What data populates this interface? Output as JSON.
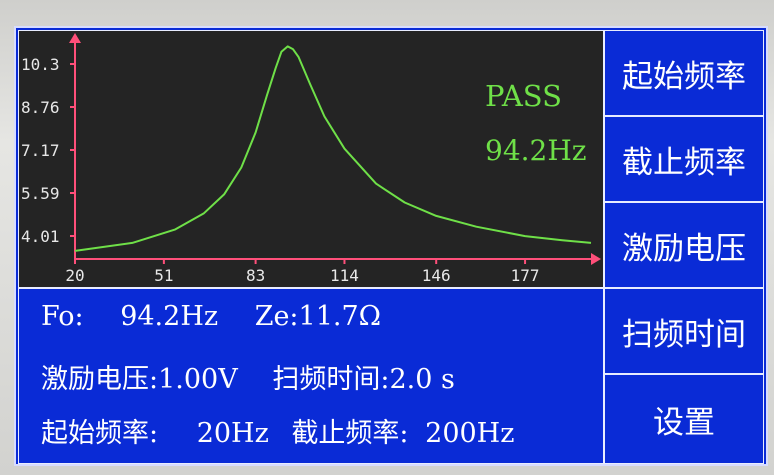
{
  "plot": {
    "y_ticks": [
      "10.3",
      "8.76",
      "7.17",
      "5.59",
      "4.01"
    ],
    "x_ticks": [
      "20",
      "51",
      "83",
      "114",
      "146",
      "177"
    ],
    "result": "PASS",
    "peak_freq": "94.2Hz",
    "colors": {
      "curve": "#6fe048",
      "axis": "#ff4f7a",
      "background": "#242424"
    }
  },
  "chart_data": {
    "type": "line",
    "xlim": [
      20,
      200
    ],
    "ylim": [
      2.5,
      10.6
    ],
    "series": [
      {
        "x": [
          20,
          40,
          55,
          65,
          72,
          78,
          83,
          87,
          90,
          92,
          94.2,
          96,
          98,
          102,
          107,
          114,
          125,
          135,
          146,
          160,
          177,
          190,
          200
        ],
        "y": [
          2.8,
          3.1,
          3.6,
          4.2,
          4.9,
          5.9,
          7.2,
          8.6,
          9.6,
          10.2,
          10.4,
          10.3,
          10.0,
          9.0,
          7.8,
          6.6,
          5.3,
          4.6,
          4.1,
          3.7,
          3.35,
          3.2,
          3.1
        ]
      }
    ]
  },
  "info": {
    "fo_label": "Fo:",
    "fo_value": "94.2Hz",
    "ze_label": "Ze:",
    "ze_value": "11.7Ω",
    "drive_voltage_label": "激励电压:",
    "drive_voltage_value": "1.00V",
    "sweep_time_label": "扫频时间:",
    "sweep_time_value": "2.0 s",
    "start_freq_label": "起始频率:",
    "start_freq_value": "20Hz",
    "stop_freq_label": "截止频率:",
    "stop_freq_value": "200Hz"
  },
  "menu": {
    "start_freq": "起始频率",
    "stop_freq": "截止频率",
    "drive_voltage": "激励电压",
    "sweep_time": "扫频时间",
    "settings": "设置"
  }
}
